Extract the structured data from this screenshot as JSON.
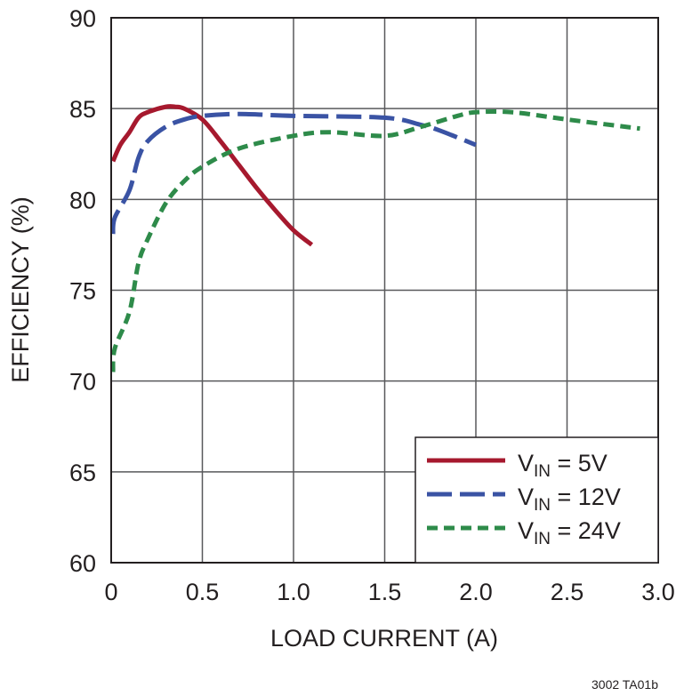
{
  "chart_data": {
    "type": "line",
    "xlabel": "LOAD CURRENT (A)",
    "ylabel": "EFFICIENCY (%)",
    "xlim": [
      0,
      3.0
    ],
    "ylim": [
      60,
      90
    ],
    "xticks": [
      "0",
      "0.5",
      "1.0",
      "1.5",
      "2.0",
      "2.5",
      "3.0"
    ],
    "xtick_values": [
      0,
      0.5,
      1.0,
      1.5,
      2.0,
      2.5,
      3.0
    ],
    "yticks": [
      "60",
      "65",
      "70",
      "75",
      "80",
      "85",
      "90"
    ],
    "ytick_values": [
      60,
      65,
      70,
      75,
      80,
      85,
      90
    ],
    "grid": true,
    "legend_placement": "bottom-right",
    "footnote": "3002 TA01b",
    "series": [
      {
        "name": "VIN = 5V",
        "label_main": "V",
        "label_sub": "IN",
        "label_rest": " = 5V",
        "color": "#a6192e",
        "dash": "solid",
        "x": [
          0.01,
          0.05,
          0.1,
          0.15,
          0.2,
          0.3,
          0.35,
          0.4,
          0.5,
          0.6,
          0.7,
          0.8,
          0.9,
          1.0,
          1.1
        ],
        "y": [
          82.1,
          83.0,
          83.7,
          84.5,
          84.8,
          85.1,
          85.1,
          85.0,
          84.4,
          83.2,
          81.9,
          80.6,
          79.4,
          78.3,
          77.5
        ]
      },
      {
        "name": "VIN = 12V",
        "label_main": "V",
        "label_sub": "IN",
        "label_rest": " = 12V",
        "color": "#3a53a4",
        "dash": "long-dash",
        "x": [
          0.01,
          0.02,
          0.1,
          0.15,
          0.2,
          0.3,
          0.4,
          0.5,
          0.7,
          1.0,
          1.5,
          1.7,
          1.8,
          2.0
        ],
        "y": [
          78.1,
          79.0,
          80.5,
          82.3,
          83.2,
          84.0,
          84.4,
          84.6,
          84.7,
          84.6,
          84.5,
          84.1,
          83.8,
          83.0
        ]
      },
      {
        "name": "VIN = 24V",
        "label_main": "V",
        "label_sub": "IN",
        "label_rest": " = 24V",
        "color": "#2e8b4a",
        "dash": "short-dash",
        "x": [
          0.01,
          0.02,
          0.1,
          0.15,
          0.2,
          0.3,
          0.4,
          0.5,
          0.7,
          1.0,
          1.2,
          1.5,
          1.7,
          1.9,
          2.0,
          2.2,
          2.5,
          2.9
        ],
        "y": [
          70.5,
          71.8,
          73.8,
          76.5,
          77.8,
          79.8,
          81.0,
          81.8,
          82.8,
          83.5,
          83.7,
          83.5,
          84.0,
          84.6,
          84.8,
          84.8,
          84.4,
          83.9
        ]
      }
    ]
  }
}
